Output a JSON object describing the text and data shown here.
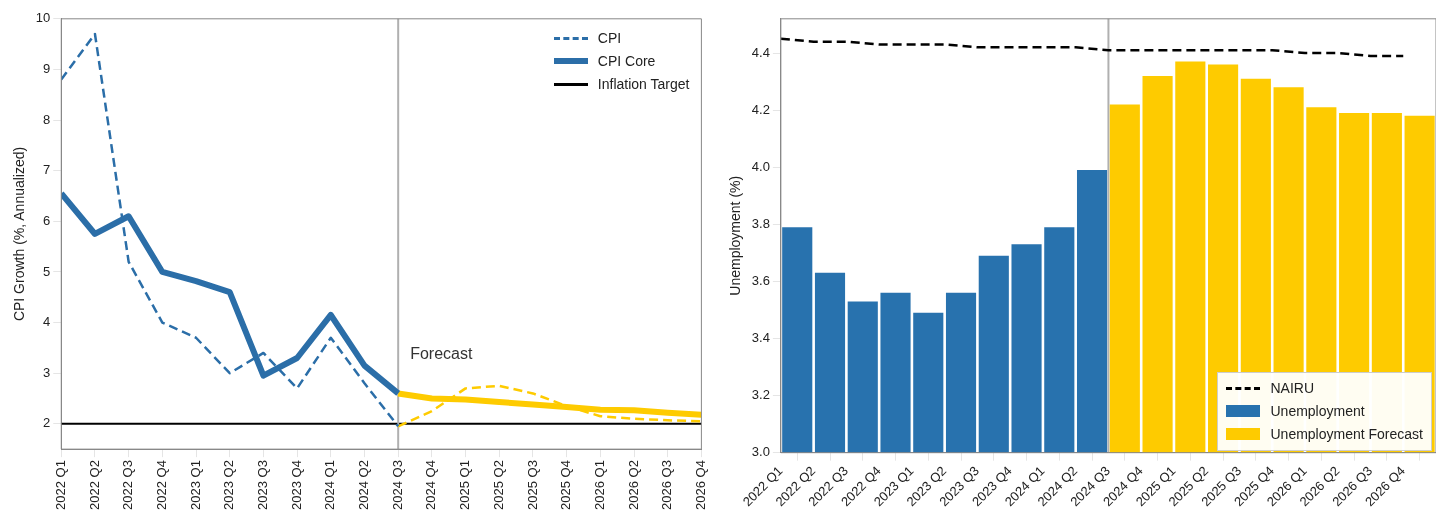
{
  "chart_data": [
    {
      "type": "line",
      "ylabel": "CPI Growth (%, Annualized)",
      "categories": [
        "2022 Q1",
        "2022 Q2",
        "2022 Q3",
        "2022 Q4",
        "2023 Q1",
        "2023 Q2",
        "2023 Q3",
        "2023 Q4",
        "2024 Q1",
        "2024 Q2",
        "2024 Q3",
        "2024 Q4",
        "2025 Q1",
        "2025 Q2",
        "2025 Q3",
        "2025 Q4",
        "2026 Q1",
        "2026 Q2",
        "2026 Q3",
        "2026 Q4"
      ],
      "series": [
        {
          "name": "CPI",
          "color": "#2b6ea8",
          "line_style": "dashed",
          "values": [
            8.8,
            9.7,
            5.2,
            4.0,
            3.7,
            3.0,
            3.4,
            2.7,
            3.7,
            2.8,
            1.95,
            null,
            null,
            null,
            null,
            null,
            null,
            null,
            null,
            null
          ]
        },
        {
          "name": "CPI Core",
          "color": "#2b6ea8",
          "line_style": "solid",
          "values": [
            6.55,
            5.75,
            6.1,
            5.0,
            4.82,
            4.6,
            2.95,
            3.3,
            4.15,
            3.15,
            2.6,
            null,
            null,
            null,
            null,
            null,
            null,
            null,
            null,
            null
          ]
        },
        {
          "color": "#fecb00",
          "line_style": "dashed",
          "values": [
            null,
            null,
            null,
            null,
            null,
            null,
            null,
            null,
            null,
            null,
            1.95,
            2.25,
            2.7,
            2.75,
            2.6,
            2.35,
            2.15,
            2.1,
            2.07,
            2.05
          ]
        },
        {
          "color": "#fecb00",
          "line_style": "solid",
          "values": [
            null,
            null,
            null,
            null,
            null,
            null,
            null,
            null,
            null,
            null,
            2.6,
            2.5,
            2.48,
            2.43,
            2.38,
            2.33,
            2.28,
            2.27,
            2.22,
            2.18
          ]
        }
      ],
      "ylim": [
        1.5,
        10
      ],
      "yticks": [
        2,
        3,
        4,
        5,
        6,
        7,
        8,
        9,
        10
      ],
      "grid": false,
      "legend": "top right",
      "marker": "none",
      "ref_lines": [
        {
          "axis": "y",
          "value": 2,
          "label": "Inflation Target",
          "color": "#000000"
        },
        {
          "axis": "x",
          "value": "2024 Q3",
          "label": "Forecast",
          "color": "#b0b0b0"
        }
      ]
    },
    {
      "type": "bar",
      "ylabel": "Unemployment (%)",
      "categories": [
        "2022 Q1",
        "2022 Q2",
        "2022 Q3",
        "2022 Q4",
        "2023 Q1",
        "2023 Q2",
        "2023 Q3",
        "2023 Q4",
        "2024 Q1",
        "2024 Q2",
        "2024 Q3",
        "2024 Q4",
        "2025 Q1",
        "2025 Q2",
        "2025 Q3",
        "2025 Q4",
        "2026 Q1",
        "2026 Q2",
        "2026 Q3",
        "2026 Q4"
      ],
      "series": [
        {
          "name": "NAIRU",
          "type": "line",
          "color": "#000000",
          "line_style": "dashed",
          "values": [
            4.45,
            4.44,
            4.44,
            4.43,
            4.43,
            4.43,
            4.42,
            4.42,
            4.42,
            4.42,
            4.41,
            4.41,
            4.41,
            4.41,
            4.41,
            4.41,
            4.4,
            4.4,
            4.39,
            4.39
          ]
        },
        {
          "name": "Unemployment",
          "color": "#2872ae",
          "values": [
            3.79,
            3.63,
            3.53,
            3.56,
            3.49,
            3.56,
            3.69,
            3.73,
            3.79,
            3.99,
            null,
            null,
            null,
            null,
            null,
            null,
            null,
            null,
            null,
            null
          ]
        },
        {
          "name": "Unemployment Forecast",
          "color": "#fecb00",
          "values": [
            null,
            null,
            null,
            null,
            null,
            null,
            null,
            null,
            null,
            null,
            4.22,
            4.32,
            4.37,
            4.36,
            4.31,
            4.28,
            4.21,
            4.19,
            4.19,
            4.18
          ]
        }
      ],
      "ylim": [
        3.0,
        4.52
      ],
      "yticks": [
        {
          "value": 3,
          "label": "3.0"
        },
        3.2,
        3.4,
        3.6,
        3.8,
        {
          "value": 4,
          "label": "4.0"
        },
        4.2,
        4.4
      ],
      "grid": false,
      "legend": "bottom right",
      "marker": "none",
      "ref_lines": [
        {
          "axis": "x",
          "value": "2024 Q3",
          "color": "#b0b0b0"
        }
      ]
    }
  ]
}
